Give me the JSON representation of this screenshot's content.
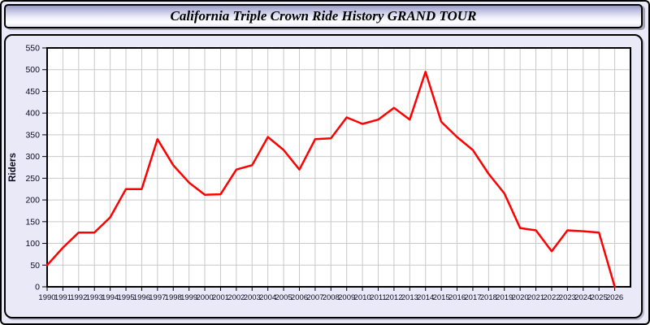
{
  "title_bar": {
    "title": "California Triple Crown Ride History GRAND TOUR"
  },
  "colors": {
    "page_bg": "#e9e9f8",
    "panel_bg": "#e9e9f8",
    "plot_bg": "#ffffff",
    "grid": "#c9c9c9",
    "axis": "#000000",
    "line": "#ff0000",
    "tick_text": "#0b0b1e",
    "title_text": "#000000"
  },
  "chart_data": {
    "type": "line",
    "title": "California Triple Crown Ride History GRAND TOUR",
    "xlabel": "",
    "ylabel": "Riders",
    "ylim": [
      0,
      550
    ],
    "y_ticks": [
      0,
      50,
      100,
      150,
      200,
      250,
      300,
      350,
      400,
      450,
      500,
      550
    ],
    "grid": true,
    "legend_position": "none",
    "x": [
      1990,
      1991,
      1992,
      1993,
      1994,
      1995,
      1996,
      1997,
      1998,
      1999,
      2000,
      2001,
      2002,
      2003,
      2004,
      2005,
      2006,
      2007,
      2008,
      2009,
      2010,
      2011,
      2012,
      2013,
      2014,
      2015,
      2016,
      2017,
      2018,
      2019,
      2020,
      2021,
      2022,
      2023,
      2024,
      2025,
      2026
    ],
    "series": [
      {
        "name": "Riders",
        "color": "#ff0000",
        "values": [
          50,
          90,
          125,
          125,
          160,
          225,
          225,
          340,
          280,
          240,
          212,
          213,
          270,
          280,
          345,
          315,
          270,
          340,
          342,
          390,
          375,
          385,
          412,
          385,
          495,
          380,
          345,
          315,
          260,
          215,
          135,
          130,
          82,
          130,
          128,
          125,
          0
        ]
      }
    ]
  }
}
